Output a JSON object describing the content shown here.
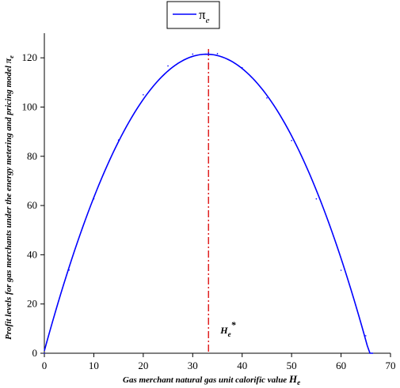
{
  "chart_data": {
    "type": "line",
    "xlabel": "Gas merchant natural gas unit calorific value",
    "xlabel_symbol": "H",
    "xlabel_subscript": "e",
    "ylabel": "Profit levels for gas merchants under the energy metering and pricing model",
    "ylabel_symbol": "π",
    "ylabel_subscript": "e",
    "xlim": [
      0,
      70
    ],
    "ylim": [
      0,
      130
    ],
    "x_ticks": [
      "0",
      "10",
      "20",
      "30",
      "40",
      "50",
      "60",
      "70"
    ],
    "y_ticks": [
      "0",
      "20",
      "40",
      "60",
      "80",
      "100",
      "120"
    ],
    "legend": {
      "position": "top-center",
      "symbol": "π",
      "subscript": "e"
    },
    "series": [
      {
        "name": "πe",
        "color": "#0000ff",
        "style": "solid",
        "x": [
          0,
          5,
          10,
          15,
          20,
          25,
          30,
          33.2,
          35,
          40,
          45,
          50,
          55,
          60,
          65,
          66.4
        ],
        "y": [
          0,
          33.8,
          62.7,
          86.6,
          105.0,
          116.7,
          121.5,
          122.0,
          121.7,
          116.0,
          103.7,
          86.4,
          62.7,
          33.7,
          7.1,
          0
        ]
      }
    ],
    "vline": {
      "x": 33.2,
      "color": "#e02020",
      "style": "dashdot",
      "label_symbol": "H",
      "label_subscript": "e",
      "label_superscript": "*"
    },
    "grid": false
  }
}
